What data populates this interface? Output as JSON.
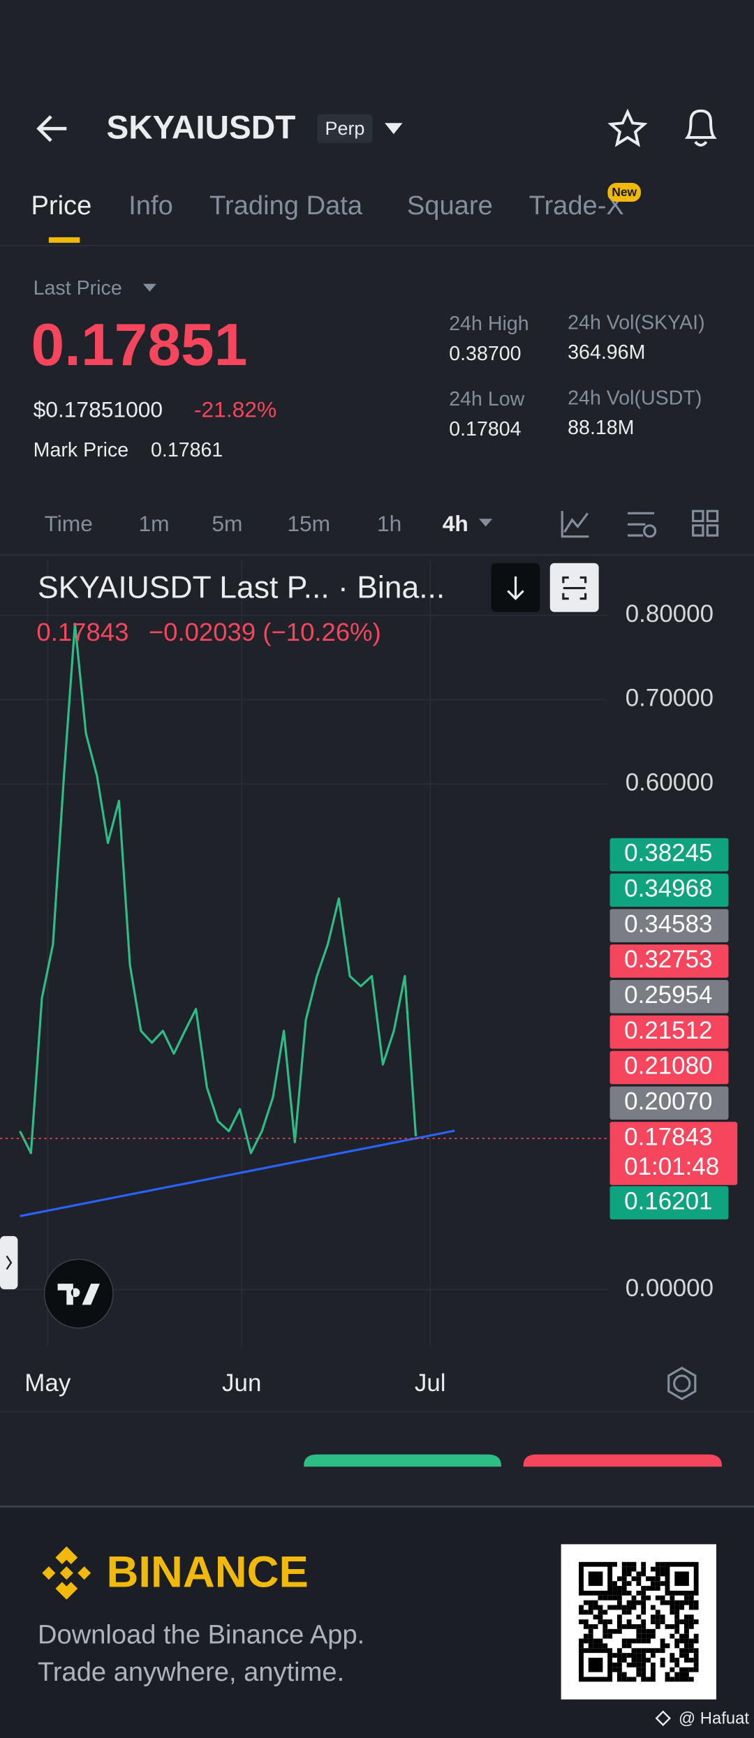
{
  "header": {
    "symbol": "SKYAIUSDT",
    "badge": "Perp"
  },
  "tabs": [
    "Price",
    "Info",
    "Trading Data",
    "Square",
    "Trade-X"
  ],
  "new_badge": "New",
  "ticker": {
    "last_price_label": "Last Price",
    "last_price": "0.17851",
    "usd_price": "$0.17851000",
    "change": "-21.82%",
    "mark_price_label": "Mark Price",
    "mark_price": "0.17861",
    "stats": [
      {
        "label": "24h High",
        "value": "0.38700"
      },
      {
        "label": "24h Vol(SKYAI)",
        "value": "364.96M"
      },
      {
        "label": "24h Low",
        "value": "0.17804"
      },
      {
        "label": "24h Vol(USDT)",
        "value": "88.18M"
      }
    ]
  },
  "intervals": [
    "Time",
    "1m",
    "5m",
    "15m",
    "1h",
    "4h"
  ],
  "chart_data": {
    "type": "line",
    "title": "SKYAIUSDT Last P... · Bina...",
    "legend_price": "0.17843",
    "legend_change": "−0.02039 (−10.26%)",
    "x_labels": [
      "May",
      "Jun",
      "Jul"
    ],
    "values": [
      0.188,
      0.162,
      0.346,
      0.41,
      0.61,
      0.79,
      0.66,
      0.61,
      0.53,
      0.58,
      0.385,
      0.307,
      0.293,
      0.307,
      0.28,
      0.307,
      0.333,
      0.24,
      0.2,
      0.188,
      0.214,
      0.162,
      0.188,
      0.228,
      0.307,
      0.175,
      0.32,
      0.372,
      0.41,
      0.464,
      0.372,
      0.36,
      0.372,
      0.267,
      0.307,
      0.372,
      0.182
    ],
    "color": "#2ebd85",
    "trendline_color": "#2962ff",
    "ylim": [
      -0.068,
      0.866
    ],
    "yticks": [
      {
        "value": 0.8,
        "label": "0.80000"
      },
      {
        "value": 0.7,
        "label": "0.70000"
      },
      {
        "value": 0.6,
        "label": "0.60000"
      },
      {
        "value": 0,
        "label": "0.00000"
      }
    ],
    "grid": true,
    "price_tags": [
      {
        "label": "0.38245",
        "color": "#10a37f"
      },
      {
        "label": "0.34968",
        "color": "#10a37f"
      },
      {
        "label": "0.34583",
        "color": "#7a7d83"
      },
      {
        "label": "0.32753",
        "color": "#f6465d"
      },
      {
        "label": "0.25954",
        "color": "#7a7d83"
      },
      {
        "label": "0.21512",
        "color": "#f6465d"
      },
      {
        "label": "0.21080",
        "color": "#f6465d"
      },
      {
        "label": "0.20070",
        "color": "#7a7d83"
      },
      {
        "label": "0.17843",
        "color": "#f6465d",
        "countdown": "01:01:48"
      },
      {
        "label": "0.16201",
        "color": "#10a37f"
      }
    ]
  },
  "footer": {
    "brand": "BINANCE",
    "line1": "Download the Binance App.",
    "line2": "Trade anywhere, anytime.",
    "watermark": "@ Hafuat"
  }
}
